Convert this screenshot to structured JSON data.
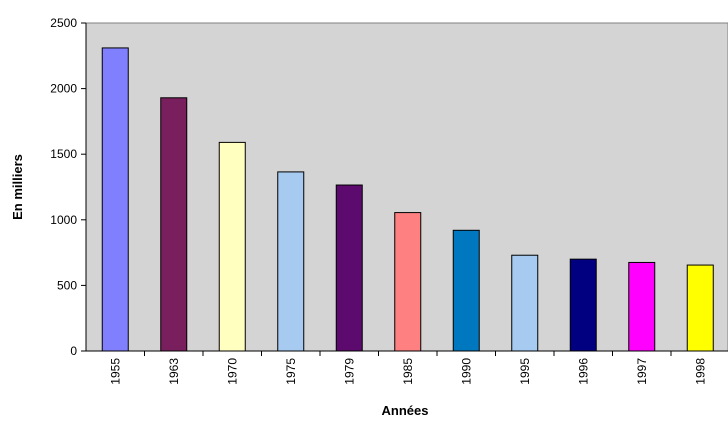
{
  "chart_data": {
    "type": "bar",
    "title": "",
    "xlabel": "Années",
    "ylabel": "En milliers",
    "categories": [
      "1955",
      "1963",
      "1970",
      "1975",
      "1979",
      "1985",
      "1990",
      "1995",
      "1996",
      "1997",
      "1998"
    ],
    "values": [
      2310,
      1930,
      1590,
      1365,
      1265,
      1055,
      920,
      730,
      700,
      675,
      655
    ],
    "colors": [
      "#8080ff",
      "#7a1f5e",
      "#ffffc0",
      "#a6caf0",
      "#5c0a6e",
      "#ff8080",
      "#0078c0",
      "#a6caf0",
      "#000080",
      "#ff00ff",
      "#ffff00"
    ],
    "ylim": [
      0,
      2500
    ],
    "yticks": [
      "0",
      "500",
      "1000",
      "1500",
      "2000",
      "2500"
    ],
    "grid": false,
    "plot_background": "#d4d4d4",
    "legend": "none"
  }
}
